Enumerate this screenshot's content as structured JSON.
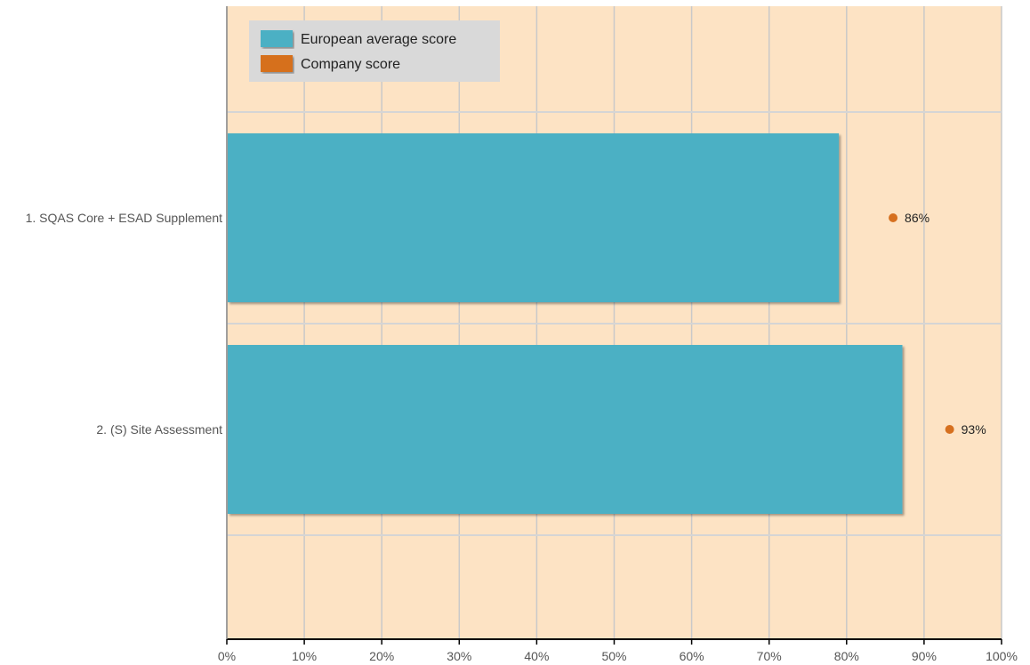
{
  "chart_data": {
    "type": "bar",
    "orientation": "horizontal",
    "categories": [
      "1. SQAS Core + ESAD Supplement",
      "2. (S) Site Assessment"
    ],
    "series": [
      {
        "name": "European average score",
        "kind": "bar",
        "values": [
          79,
          87.2
        ],
        "color": "#4bb0c4"
      },
      {
        "name": "Company score",
        "kind": "point",
        "values": [
          86,
          93.3
        ],
        "labels": [
          "86%",
          "93%"
        ],
        "color": "#d6701f"
      }
    ],
    "xlim": [
      0,
      100
    ],
    "xticks": [
      0,
      10,
      20,
      30,
      40,
      50,
      60,
      70,
      80,
      90,
      100
    ],
    "xtick_labels": [
      "0%",
      "10%",
      "20%",
      "30%",
      "40%",
      "50%",
      "60%",
      "70%",
      "80%",
      "90%",
      "100%"
    ],
    "grid": true,
    "legend_position": "top-left",
    "background_color": "#fde3c4",
    "title": "",
    "xlabel": "",
    "ylabel": ""
  }
}
